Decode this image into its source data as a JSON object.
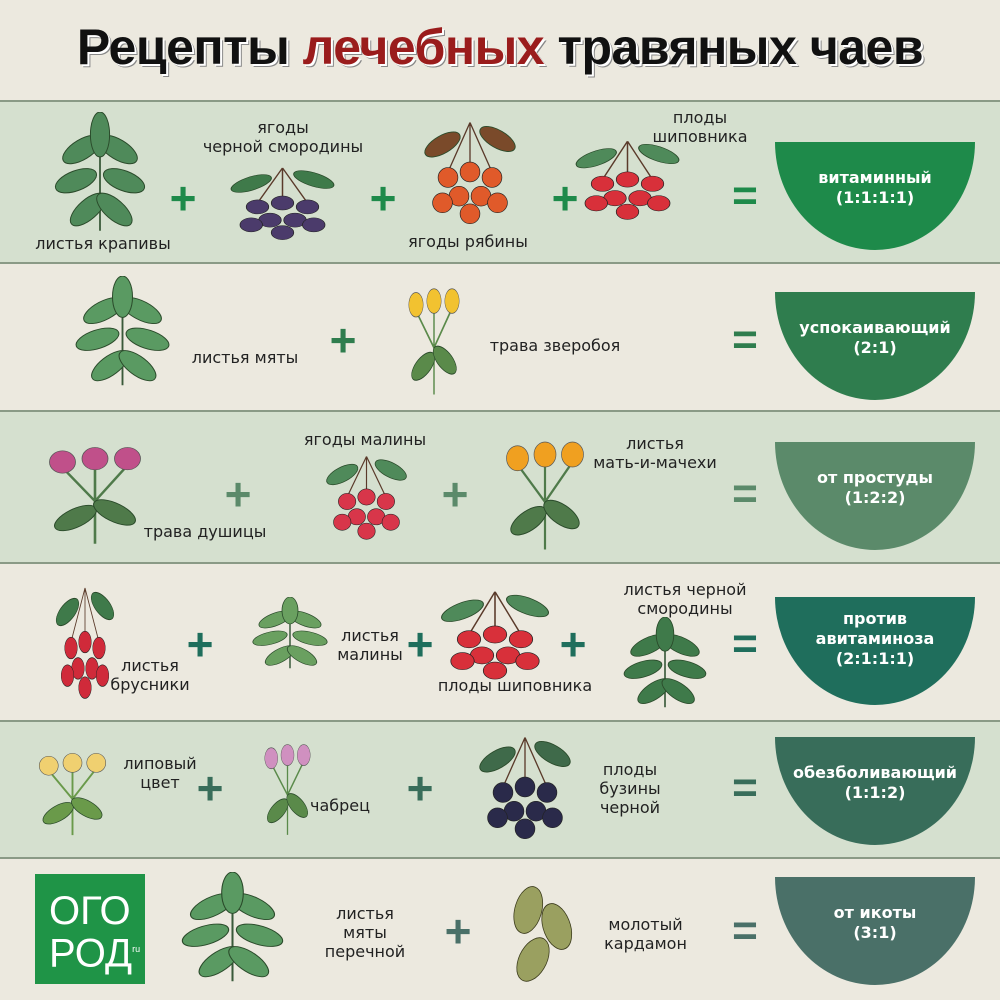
{
  "title": {
    "part1": "Рецепты ",
    "accent": "лечебных",
    "part2": " травяных чаев",
    "accent_color": "#9a1c1c"
  },
  "plus": "+",
  "equals": "=",
  "rows": [
    {
      "items": [
        {
          "label": "листья крапивы",
          "icon": "nettle-icon"
        },
        {
          "label": "ягоды\nчерной смородины",
          "icon": "blackcurrant-icon"
        },
        {
          "label": "ягоды рябины",
          "icon": "rowan-icon"
        },
        {
          "label": "плоды\nшиповника",
          "icon": "rosehip-icon"
        }
      ],
      "result": "витаминный\n(1:1:1:1)",
      "color": "#1e8a4a"
    },
    {
      "items": [
        {
          "label": "листья мяты",
          "icon": "mint-icon"
        },
        {
          "label": "трава зверобоя",
          "icon": "st-johns-wort-icon"
        }
      ],
      "result": "успокаивающий\n(2:1)",
      "color": "#2f7d4e"
    },
    {
      "items": [
        {
          "label": "трава душицы",
          "icon": "oregano-icon"
        },
        {
          "label": "ягоды малины",
          "icon": "raspberry-icon"
        },
        {
          "label": "листья\nмать-и-мачехи",
          "icon": "coltsfoot-icon"
        }
      ],
      "result": "от простуды\n(1:2:2)",
      "color": "#5b8a6a"
    },
    {
      "items": [
        {
          "label": "листья\nбрусники",
          "icon": "lingonberry-icon"
        },
        {
          "label": "листья\nмалины",
          "icon": "raspberry-leaf-icon"
        },
        {
          "label": "плоды шиповника",
          "icon": "rosehip-icon"
        },
        {
          "label": "листья черной\nсмородины",
          "icon": "currant-leaf-icon"
        }
      ],
      "result": "против\nавитаминоза\n(2:1:1:1)",
      "color": "#1f6e5c"
    },
    {
      "items": [
        {
          "label": "липовый\nцвет",
          "icon": "linden-icon"
        },
        {
          "label": "чабрец",
          "icon": "thyme-icon"
        },
        {
          "label": "плоды\nбузины\nчерной",
          "icon": "elderberry-icon"
        }
      ],
      "result": "обезболивающий\n(1:1:2)",
      "color": "#386d5a"
    },
    {
      "items": [
        {
          "label": "листья\nмяты\nперечной",
          "icon": "peppermint-icon"
        },
        {
          "label": "молотый\nкардамон",
          "icon": "cardamom-icon"
        }
      ],
      "result": "от икоты\n(3:1)",
      "color": "#4a7068"
    }
  ],
  "logo": {
    "line1": "ОГО",
    "line2": "РОД",
    "suffix": "ru"
  }
}
